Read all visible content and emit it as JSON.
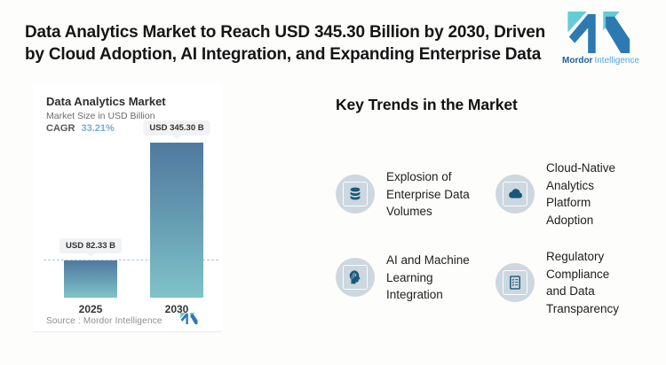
{
  "header": {
    "title": "Data Analytics Market to Reach USD 345.30 Billion by 2030, Driven\nby Cloud Adoption, AI Integration, and Expanding Enterprise Data"
  },
  "brand": {
    "name_primary": "Mordor",
    "name_secondary": "Intelligence",
    "mark_blue": "#2d7ab3",
    "mark_teal": "#63ccd8"
  },
  "chart_data": {
    "type": "bar",
    "title": "Data Analytics Market",
    "subtitle": "Market Size in USD Billion",
    "cagr_label": "CAGR",
    "cagr_value": "33.21%",
    "categories": [
      "2025",
      "2030"
    ],
    "values": [
      82.33,
      345.3
    ],
    "value_labels": [
      "USD 82.33 B",
      "USD 345.30 B"
    ],
    "unit": "USD Billion",
    "ylim": [
      0,
      345.3
    ],
    "grid": false,
    "legend": false,
    "reference_line": {
      "value": 82.33,
      "style": "dashed"
    },
    "bar_gradient_top": "#50799f",
    "bar_gradient_bottom": "#7fc3c9",
    "source": "Source :  Mordor Intelligence"
  },
  "trends": {
    "heading": "Key Trends in the Market",
    "items": [
      {
        "icon": "database-icon",
        "text": "Explosion of\nEnterprise Data\nVolumes"
      },
      {
        "icon": "cloud-icon",
        "text": "Cloud-Native\nAnalytics\nPlatform\nAdoption"
      },
      {
        "icon": "ai-head-icon",
        "text": "AI and Machine\nLearning\nIntegration"
      },
      {
        "icon": "checklist-icon",
        "text": "Regulatory\nCompliance\nand Data\nTransparency"
      }
    ]
  },
  "colors": {
    "accent_glyph_blue": "#17597c",
    "icon_circle_bg": "#cdd7df",
    "cagr_blue": "#74aed3",
    "dashed_line": "#aac6d9",
    "label_box_bg": "#f1f2f3",
    "text_dark": "#151515",
    "text_gray": "#6b6b6b"
  }
}
